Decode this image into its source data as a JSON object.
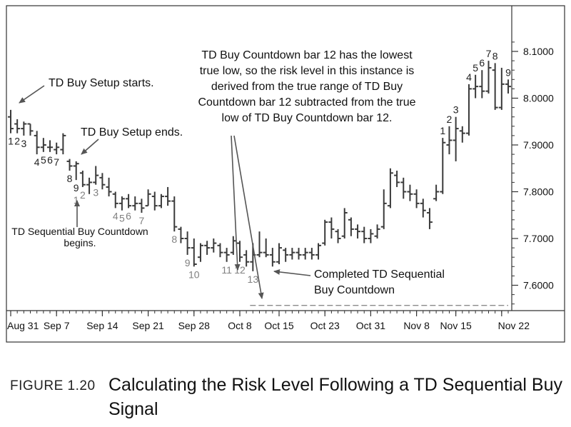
{
  "caption": {
    "figure_label": "FIGURE 1.20",
    "title": "Calculating the Risk Level Following a TD Sequential Buy Signal"
  },
  "chart_data": {
    "type": "ohlc",
    "title": "",
    "xlabel": "",
    "ylabel": "",
    "ylim": [
      7.55,
      8.13
    ],
    "y_ticks": [
      "8.1000",
      "8.0000",
      "7.9000",
      "7.8000",
      "7.7000",
      "7.6000"
    ],
    "y_tick_values": [
      8.1,
      8.0,
      7.9,
      7.8,
      7.7,
      7.6
    ],
    "x_tick_labels": [
      "Aug 31",
      "Sep 7",
      "Sep 14",
      "Sep 21",
      "Sep 28",
      "Oct 8",
      "Oct 15",
      "Oct 23",
      "Oct 31",
      "Nov 8",
      "Nov 15",
      "Nov 22"
    ],
    "x_tick_bar_index": [
      0,
      7,
      14,
      21,
      28,
      35,
      41,
      48,
      55,
      62,
      68,
      75
    ],
    "bars": [
      {
        "h": 7.975,
        "l": 7.925,
        "o": 7.96,
        "c": 7.935
      },
      {
        "h": 7.955,
        "l": 7.925,
        "o": 7.945,
        "c": 7.935
      },
      {
        "h": 7.95,
        "l": 7.92,
        "o": 7.935,
        "c": 7.945
      },
      {
        "h": 7.945,
        "l": 7.92,
        "o": 7.945,
        "c": 7.93
      },
      {
        "h": 7.93,
        "l": 7.88,
        "o": 7.92,
        "c": 7.895
      },
      {
        "h": 7.915,
        "l": 7.885,
        "o": 7.895,
        "c": 7.9
      },
      {
        "h": 7.91,
        "l": 7.885,
        "o": 7.895,
        "c": 7.895
      },
      {
        "h": 7.905,
        "l": 7.88,
        "o": 7.89,
        "c": 7.895
      },
      {
        "h": 7.925,
        "l": 7.88,
        "o": 7.89,
        "c": 7.92
      },
      {
        "h": 7.87,
        "l": 7.845,
        "o": 7.865,
        "c": 7.855
      },
      {
        "h": 7.865,
        "l": 7.825,
        "o": 7.855,
        "c": 7.86
      },
      {
        "h": 7.845,
        "l": 7.81,
        "o": 7.84,
        "c": 7.815
      },
      {
        "h": 7.83,
        "l": 7.795,
        "o": 7.815,
        "c": 7.82
      },
      {
        "h": 7.855,
        "l": 7.815,
        "o": 7.82,
        "c": 7.835
      },
      {
        "h": 7.84,
        "l": 7.805,
        "o": 7.83,
        "c": 7.815
      },
      {
        "h": 7.83,
        "l": 7.79,
        "o": 7.81,
        "c": 7.8
      },
      {
        "h": 7.8,
        "l": 7.765,
        "o": 7.795,
        "c": 7.775
      },
      {
        "h": 7.79,
        "l": 7.76,
        "o": 7.775,
        "c": 7.785
      },
      {
        "h": 7.795,
        "l": 7.765,
        "o": 7.785,
        "c": 7.77
      },
      {
        "h": 7.79,
        "l": 7.76,
        "o": 7.77,
        "c": 7.775
      },
      {
        "h": 7.785,
        "l": 7.755,
        "o": 7.775,
        "c": 7.765
      },
      {
        "h": 7.805,
        "l": 7.77,
        "o": 7.77,
        "c": 7.795
      },
      {
        "h": 7.8,
        "l": 7.76,
        "o": 7.79,
        "c": 7.77
      },
      {
        "h": 7.795,
        "l": 7.765,
        "o": 7.77,
        "c": 7.79
      },
      {
        "h": 7.81,
        "l": 7.77,
        "o": 7.79,
        "c": 7.78
      },
      {
        "h": 7.79,
        "l": 7.715,
        "o": 7.78,
        "c": 7.725
      },
      {
        "h": 7.725,
        "l": 7.69,
        "o": 7.72,
        "c": 7.7
      },
      {
        "h": 7.715,
        "l": 7.665,
        "o": 7.7,
        "c": 7.68
      },
      {
        "h": 7.7,
        "l": 7.64,
        "o": 7.68,
        "c": 7.645
      },
      {
        "h": 7.69,
        "l": 7.65,
        "o": 7.66,
        "c": 7.685
      },
      {
        "h": 7.695,
        "l": 7.665,
        "o": 7.685,
        "c": 7.68
      },
      {
        "h": 7.7,
        "l": 7.67,
        "o": 7.68,
        "c": 7.69
      },
      {
        "h": 7.69,
        "l": 7.66,
        "o": 7.685,
        "c": 7.67
      },
      {
        "h": 7.68,
        "l": 7.65,
        "o": 7.67,
        "c": 7.665
      },
      {
        "h": 7.705,
        "l": 7.665,
        "o": 7.67,
        "c": 7.695
      },
      {
        "h": 7.695,
        "l": 7.65,
        "o": 7.69,
        "c": 7.66
      },
      {
        "h": 7.675,
        "l": 7.64,
        "o": 7.665,
        "c": 7.65
      },
      {
        "h": 7.69,
        "l": 7.63,
        "o": 7.65,
        "c": 7.665
      },
      {
        "h": 7.715,
        "l": 7.66,
        "o": 7.665,
        "c": 7.67
      },
      {
        "h": 7.7,
        "l": 7.66,
        "o": 7.67,
        "c": 7.665
      },
      {
        "h": 7.68,
        "l": 7.64,
        "o": 7.665,
        "c": 7.65
      },
      {
        "h": 7.69,
        "l": 7.645,
        "o": 7.65,
        "c": 7.68
      },
      {
        "h": 7.68,
        "l": 7.65,
        "o": 7.675,
        "c": 7.665
      },
      {
        "h": 7.68,
        "l": 7.655,
        "o": 7.665,
        "c": 7.67
      },
      {
        "h": 7.68,
        "l": 7.655,
        "o": 7.67,
        "c": 7.665
      },
      {
        "h": 7.68,
        "l": 7.655,
        "o": 7.665,
        "c": 7.67
      },
      {
        "h": 7.68,
        "l": 7.655,
        "o": 7.67,
        "c": 7.665
      },
      {
        "h": 7.69,
        "l": 7.655,
        "o": 7.665,
        "c": 7.685
      },
      {
        "h": 7.74,
        "l": 7.685,
        "o": 7.69,
        "c": 7.735
      },
      {
        "h": 7.745,
        "l": 7.7,
        "o": 7.735,
        "c": 7.72
      },
      {
        "h": 7.72,
        "l": 7.69,
        "o": 7.715,
        "c": 7.7
      },
      {
        "h": 7.765,
        "l": 7.7,
        "o": 7.705,
        "c": 7.755
      },
      {
        "h": 7.745,
        "l": 7.705,
        "o": 7.74,
        "c": 7.72
      },
      {
        "h": 7.73,
        "l": 7.7,
        "o": 7.72,
        "c": 7.715
      },
      {
        "h": 7.725,
        "l": 7.69,
        "o": 7.715,
        "c": 7.7
      },
      {
        "h": 7.72,
        "l": 7.69,
        "o": 7.7,
        "c": 7.71
      },
      {
        "h": 7.73,
        "l": 7.7,
        "o": 7.705,
        "c": 7.72
      },
      {
        "h": 7.805,
        "l": 7.72,
        "o": 7.725,
        "c": 7.775
      },
      {
        "h": 7.85,
        "l": 7.765,
        "o": 7.77,
        "c": 7.84
      },
      {
        "h": 7.845,
        "l": 7.81,
        "o": 7.835,
        "c": 7.82
      },
      {
        "h": 7.83,
        "l": 7.785,
        "o": 7.82,
        "c": 7.8
      },
      {
        "h": 7.815,
        "l": 7.78,
        "o": 7.8,
        "c": 7.795
      },
      {
        "h": 7.805,
        "l": 7.765,
        "o": 7.795,
        "c": 7.775
      },
      {
        "h": 7.785,
        "l": 7.745,
        "o": 7.775,
        "c": 7.76
      },
      {
        "h": 7.765,
        "l": 7.72,
        "o": 7.755,
        "c": 7.735
      },
      {
        "h": 7.815,
        "l": 7.78,
        "o": 7.785,
        "c": 7.8
      },
      {
        "h": 7.915,
        "l": 7.795,
        "o": 7.8,
        "c": 7.905
      },
      {
        "h": 7.94,
        "l": 7.88,
        "o": 7.9,
        "c": 7.91
      },
      {
        "h": 7.96,
        "l": 7.865,
        "o": 7.91,
        "c": 7.935
      },
      {
        "h": 7.94,
        "l": 7.905,
        "o": 7.93,
        "c": 7.925
      },
      {
        "h": 8.03,
        "l": 7.92,
        "o": 7.925,
        "c": 8.02
      },
      {
        "h": 8.05,
        "l": 8.0,
        "o": 8.02,
        "c": 8.025
      },
      {
        "h": 8.06,
        "l": 8.0,
        "o": 8.025,
        "c": 8.015
      },
      {
        "h": 8.08,
        "l": 8.01,
        "o": 8.015,
        "c": 8.065
      },
      {
        "h": 8.075,
        "l": 7.975,
        "o": 8.06,
        "c": 7.98
      },
      {
        "h": 8.065,
        "l": 7.975,
        "o": 7.98,
        "c": 8.03
      },
      {
        "h": 8.04,
        "l": 8.01,
        "o": 8.03,
        "c": 8.025
      }
    ],
    "bar_labels": [
      {
        "bar": 0,
        "text": "1",
        "pos": "below",
        "style": "setup"
      },
      {
        "bar": 1,
        "text": "2",
        "pos": "below",
        "style": "setup"
      },
      {
        "bar": 2,
        "text": "3",
        "pos": "below",
        "style": "setup"
      },
      {
        "bar": 4,
        "text": "4",
        "pos": "below",
        "style": "setup"
      },
      {
        "bar": 5,
        "text": "5",
        "pos": "below",
        "style": "setup"
      },
      {
        "bar": 6,
        "text": "6",
        "pos": "below",
        "style": "setup"
      },
      {
        "bar": 7,
        "text": "7",
        "pos": "below",
        "style": "setup"
      },
      {
        "bar": 9,
        "text": "8",
        "pos": "below",
        "style": "setup"
      },
      {
        "bar": 10,
        "text": "9",
        "pos": "below",
        "style": "setup"
      },
      {
        "bar": 10,
        "text": "1",
        "pos": "below2",
        "style": "countdown"
      },
      {
        "bar": 11,
        "text": "2",
        "pos": "below",
        "style": "countdown"
      },
      {
        "bar": 13,
        "text": "3",
        "pos": "below",
        "style": "countdown"
      },
      {
        "bar": 16,
        "text": "4",
        "pos": "below",
        "style": "countdown"
      },
      {
        "bar": 17,
        "text": "5",
        "pos": "below",
        "style": "countdown"
      },
      {
        "bar": 18,
        "text": "6",
        "pos": "below",
        "style": "countdown"
      },
      {
        "bar": 20,
        "text": "7",
        "pos": "below",
        "style": "countdown"
      },
      {
        "bar": 25,
        "text": "8",
        "pos": "below",
        "style": "countdown"
      },
      {
        "bar": 27,
        "text": "9",
        "pos": "below",
        "style": "countdown"
      },
      {
        "bar": 28,
        "text": "10",
        "pos": "below",
        "style": "countdown"
      },
      {
        "bar": 33,
        "text": "11",
        "pos": "below",
        "style": "countdown"
      },
      {
        "bar": 35,
        "text": "12",
        "pos": "below",
        "style": "countdown"
      },
      {
        "bar": 37,
        "text": "13",
        "pos": "below",
        "style": "countdown"
      },
      {
        "bar": 66,
        "text": "1",
        "pos": "above",
        "style": "setup"
      },
      {
        "bar": 67,
        "text": "2",
        "pos": "above",
        "style": "setup"
      },
      {
        "bar": 68,
        "text": "3",
        "pos": "above",
        "style": "setup"
      },
      {
        "bar": 70,
        "text": "4",
        "pos": "above",
        "style": "setup"
      },
      {
        "bar": 71,
        "text": "5",
        "pos": "above",
        "style": "setup"
      },
      {
        "bar": 72,
        "text": "6",
        "pos": "above",
        "style": "setup"
      },
      {
        "bar": 73,
        "text": "7",
        "pos": "above",
        "style": "setup"
      },
      {
        "bar": 74,
        "text": "8",
        "pos": "above",
        "style": "setup"
      },
      {
        "bar": 76,
        "text": "9",
        "pos": "above",
        "style": "setup"
      }
    ],
    "risk_level": 7.557,
    "risk_level_start_bar": 37,
    "annotations": {
      "setup_starts": "TD Buy Setup starts.",
      "setup_ends": "TD Buy Setup ends.",
      "countdown_begins_1": "TD Sequential Buy Countdown",
      "countdown_begins_2": "begins.",
      "bar12_lines": [
        "TD Buy Countdown bar 12 has the lowest",
        "true low, so the risk level in this instance is",
        "derived from the true range of TD Buy",
        "Countdown bar 12 subtracted from the true",
        "low of TD Buy Countdown bar 12."
      ],
      "completed_1": "Completed TD Sequential",
      "completed_2": "Buy Countdown"
    },
    "colors": {
      "bar": "#3a3a3a",
      "setup_label": "#222222",
      "countdown_label": "#808080",
      "risk_line": "#8a8a8a"
    }
  }
}
